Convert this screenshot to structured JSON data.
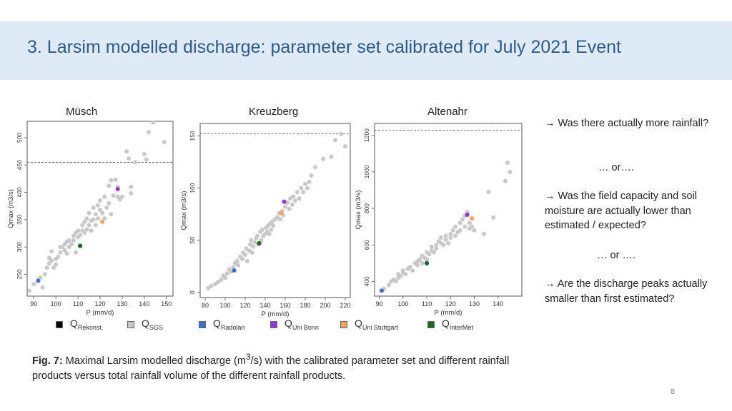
{
  "title": "3. Larsim modelled discharge: parameter set calibrated for July 2021 Event",
  "plot_titles": [
    "Müsch",
    "Kreuzberg",
    "Altenahr"
  ],
  "side_text": {
    "q1": "→  Was there actually more rainfall?",
    "or1": "… or….",
    "q2": "→ Was the field capacity and soil moisture are actually lower than estimated / expected?",
    "or2": "… or ….",
    "q3": "→ Are the discharge peaks actually smaller than first estimated?"
  },
  "caption": {
    "prefix": "Fig. 7:",
    "text_before_sup": " Maximal Larsim modelled discharge (m",
    "sup": "3",
    "text_after_sup": "/s) with the calibrated parameter set and different rainfall products versus total rainfall volume of the different rainfall products."
  },
  "page_number": "8",
  "legend": [
    {
      "key": "rekonst",
      "main": "Q",
      "sub": "Rekonst.",
      "color": "#000000"
    },
    {
      "key": "sgs",
      "main": "Q",
      "sub": "SGS",
      "color": "#c8c8c8"
    },
    {
      "key": "radolan",
      "main": "Q",
      "sub": "Radolan",
      "color": "#3b6fd6"
    },
    {
      "key": "unibonn",
      "main": "Q",
      "sub": "Uni Bonn",
      "color": "#9b30e0"
    },
    {
      "key": "unistuttgart",
      "main": "Q",
      "sub": "Uni Stuttgart",
      "color": "#f4a460"
    },
    {
      "key": "intermet",
      "main": "Q",
      "sub": "InterMet",
      "color": "#1a6b1a"
    }
  ],
  "chart_data": [
    {
      "type": "scatter",
      "title": "Müsch",
      "xlabel": "P (mm/d)",
      "ylabel": "Qmax (m3/s)",
      "xlim": [
        87,
        153
      ],
      "ylim": [
        210,
        530
      ],
      "xticks": [
        90,
        100,
        110,
        120,
        130,
        140,
        150
      ],
      "yticks": [
        250,
        300,
        350,
        400,
        450,
        500
      ],
      "hline": 455,
      "sgs": [
        [
          88,
          220
        ],
        [
          90,
          232
        ],
        [
          92,
          240
        ],
        [
          94,
          226
        ],
        [
          93,
          244
        ],
        [
          95,
          250
        ],
        [
          96,
          262
        ],
        [
          97,
          270
        ],
        [
          97,
          280
        ],
        [
          98,
          275
        ],
        [
          99,
          262
        ],
        [
          98,
          292
        ],
        [
          100,
          268
        ],
        [
          100,
          278
        ],
        [
          101,
          282
        ],
        [
          102,
          290
        ],
        [
          102,
          300
        ],
        [
          103,
          300
        ],
        [
          104,
          305
        ],
        [
          104,
          294
        ],
        [
          105,
          288
        ],
        [
          105,
          310
        ],
        [
          106,
          300
        ],
        [
          106,
          312
        ],
        [
          107,
          305
        ],
        [
          108,
          312
        ],
        [
          108,
          320
        ],
        [
          109,
          290
        ],
        [
          109,
          326
        ],
        [
          110,
          318
        ],
        [
          110,
          330
        ],
        [
          111,
          322
        ],
        [
          112,
          340
        ],
        [
          112,
          330
        ],
        [
          113,
          346
        ],
        [
          113,
          326
        ],
        [
          114,
          332
        ],
        [
          114,
          352
        ],
        [
          115,
          340
        ],
        [
          115,
          362
        ],
        [
          116,
          330
        ],
        [
          116,
          348
        ],
        [
          117,
          350
        ],
        [
          117,
          372
        ],
        [
          118,
          360
        ],
        [
          118,
          340
        ],
        [
          119,
          352
        ],
        [
          119,
          376
        ],
        [
          120,
          368
        ],
        [
          120,
          385
        ],
        [
          121,
          362
        ],
        [
          122,
          392
        ],
        [
          122,
          352
        ],
        [
          123,
          372
        ],
        [
          124,
          380
        ],
        [
          124,
          412
        ],
        [
          125,
          360
        ],
        [
          125,
          422
        ],
        [
          126,
          394
        ],
        [
          127,
          423
        ],
        [
          128,
          392
        ],
        [
          128,
          410
        ],
        [
          129,
          387
        ],
        [
          130,
          392
        ],
        [
          132,
          475
        ],
        [
          133,
          462
        ],
        [
          134,
          398
        ],
        [
          134,
          410
        ],
        [
          136,
          455
        ],
        [
          140,
          470
        ],
        [
          141,
          460
        ],
        [
          142,
          510
        ],
        [
          144,
          528
        ],
        [
          149,
          492
        ]
      ],
      "rekonst": [
        [
          111,
          302
        ]
      ],
      "radolan": [
        [
          92,
          238
        ]
      ],
      "unibonn": [
        [
          128,
          406
        ]
      ],
      "unistuttgart": [
        [
          121,
          346
        ]
      ],
      "intermet": [
        [
          111,
          302
        ]
      ]
    },
    {
      "type": "scatter",
      "title": "Kreuzberg",
      "xlabel": "P (mm/d)",
      "ylabel": "Qmax (m3/s)",
      "xlim": [
        75,
        225
      ],
      "ylim": [
        -5,
        162
      ],
      "xticks": [
        80,
        100,
        120,
        140,
        160,
        180,
        200,
        220
      ],
      "yticks": [
        0,
        50,
        100,
        150
      ],
      "hline": 152,
      "sgs": [
        [
          83,
          4
        ],
        [
          86,
          6
        ],
        [
          90,
          8
        ],
        [
          93,
          10
        ],
        [
          96,
          12
        ],
        [
          98,
          16
        ],
        [
          100,
          14
        ],
        [
          102,
          18
        ],
        [
          104,
          22
        ],
        [
          106,
          20
        ],
        [
          108,
          24
        ],
        [
          110,
          28
        ],
        [
          112,
          30
        ],
        [
          113,
          26
        ],
        [
          115,
          34
        ],
        [
          117,
          32
        ],
        [
          118,
          38
        ],
        [
          120,
          36
        ],
        [
          121,
          42
        ],
        [
          122,
          30
        ],
        [
          124,
          40
        ],
        [
          125,
          46
        ],
        [
          126,
          50
        ],
        [
          127,
          38
        ],
        [
          128,
          44
        ],
        [
          130,
          48
        ],
        [
          131,
          52
        ],
        [
          132,
          54
        ],
        [
          133,
          46
        ],
        [
          135,
          58
        ],
        [
          136,
          50
        ],
        [
          137,
          60
        ],
        [
          138,
          54
        ],
        [
          140,
          56
        ],
        [
          141,
          62
        ],
        [
          142,
          58
        ],
        [
          143,
          64
        ],
        [
          144,
          56
        ],
        [
          145,
          66
        ],
        [
          146,
          60
        ],
        [
          147,
          68
        ],
        [
          148,
          64
        ],
        [
          150,
          70
        ],
        [
          152,
          72
        ],
        [
          154,
          76
        ],
        [
          155,
          70
        ],
        [
          157,
          78
        ],
        [
          158,
          74
        ],
        [
          160,
          82
        ],
        [
          162,
          86
        ],
        [
          164,
          80
        ],
        [
          165,
          90
        ],
        [
          167,
          84
        ],
        [
          168,
          92
        ],
        [
          170,
          88
        ],
        [
          172,
          96
        ],
        [
          174,
          90
        ],
        [
          176,
          100
        ],
        [
          178,
          96
        ],
        [
          180,
          104
        ],
        [
          182,
          100
        ],
        [
          184,
          106
        ],
        [
          186,
          112
        ],
        [
          190,
          120
        ],
        [
          198,
          128
        ],
        [
          206,
          130
        ],
        [
          210,
          146
        ],
        [
          216,
          152
        ],
        [
          220,
          140
        ]
      ],
      "rekonst": [
        [
          134,
          47
        ]
      ],
      "radolan": [
        [
          109,
          21
        ]
      ],
      "unibonn": [
        [
          159,
          87
        ]
      ],
      "unistuttgart": [
        [
          156,
          76
        ]
      ],
      "intermet": [
        [
          134,
          47
        ]
      ]
    },
    {
      "type": "scatter",
      "title": "Altenahr",
      "xlabel": "P (mm/d)",
      "ylabel": "Qmax (m3/s)",
      "xlim": [
        88,
        150
      ],
      "ylim": [
        320,
        1265
      ],
      "xticks": [
        90,
        100,
        110,
        120,
        130,
        140
      ],
      "yticks": [
        400,
        600,
        800,
        1000,
        1200
      ],
      "hline": 1228,
      "sgs": [
        [
          92,
          360
        ],
        [
          94,
          380
        ],
        [
          95,
          400
        ],
        [
          96,
          410
        ],
        [
          97,
          402
        ],
        [
          98,
          420
        ],
        [
          98,
          440
        ],
        [
          99,
          430
        ],
        [
          100,
          450
        ],
        [
          100,
          460
        ],
        [
          101,
          440
        ],
        [
          102,
          470
        ],
        [
          103,
          480
        ],
        [
          104,
          460
        ],
        [
          105,
          500
        ],
        [
          106,
          490
        ],
        [
          106,
          510
        ],
        [
          107,
          520
        ],
        [
          108,
          500
        ],
        [
          108,
          540
        ],
        [
          109,
          530
        ],
        [
          110,
          520
        ],
        [
          110,
          560
        ],
        [
          111,
          550
        ],
        [
          112,
          570
        ],
        [
          112,
          590
        ],
        [
          113,
          560
        ],
        [
          114,
          600
        ],
        [
          114,
          580
        ],
        [
          115,
          620
        ],
        [
          116,
          610
        ],
        [
          116,
          640
        ],
        [
          117,
          600
        ],
        [
          118,
          650
        ],
        [
          118,
          630
        ],
        [
          119,
          610
        ],
        [
          120,
          660
        ],
        [
          120,
          640
        ],
        [
          121,
          680
        ],
        [
          122,
          650
        ],
        [
          122,
          700
        ],
        [
          123,
          670
        ],
        [
          124,
          720
        ],
        [
          124,
          680
        ],
        [
          125,
          740
        ],
        [
          126,
          700
        ],
        [
          126,
          760
        ],
        [
          127,
          780
        ],
        [
          128,
          720
        ],
        [
          128,
          690
        ],
        [
          129,
          700
        ],
        [
          130,
          680
        ],
        [
          134,
          660
        ],
        [
          136,
          890
        ],
        [
          138,
          750
        ],
        [
          143,
          950
        ],
        [
          144,
          1050
        ],
        [
          145,
          1000
        ]
      ],
      "rekonst": [
        [
          110,
          500
        ]
      ],
      "radolan": [
        [
          91,
          350
        ]
      ],
      "unibonn": [
        [
          127,
          765
        ]
      ],
      "unistuttgart": [
        [
          129,
          745
        ]
      ],
      "intermet": [
        [
          110,
          500
        ]
      ]
    }
  ]
}
